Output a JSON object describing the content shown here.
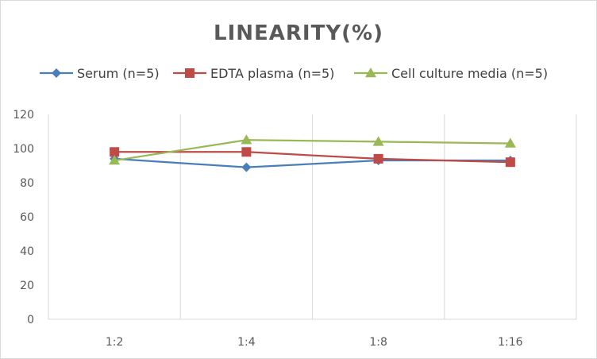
{
  "chart_data": {
    "type": "line",
    "title": "LINEARITY(%)",
    "xlabel": "",
    "ylabel": "",
    "categories": [
      "1:2",
      "1:4",
      "1:8",
      "1:16"
    ],
    "ylim": [
      0,
      120
    ],
    "yticks": [
      "0",
      "20",
      "40",
      "60",
      "80",
      "100",
      "120"
    ],
    "grid": "vertical",
    "legend_position": "top",
    "series": [
      {
        "name": "Serum (n=5)",
        "values": [
          94,
          89,
          93,
          93
        ],
        "color": "#4a7ebb",
        "marker": "diamond"
      },
      {
        "name": "EDTA plasma (n=5)",
        "values": [
          98,
          98,
          94,
          92
        ],
        "color": "#be4b48",
        "marker": "square"
      },
      {
        "name": "Cell culture media (n=5)",
        "values": [
          93,
          105,
          104,
          103
        ],
        "color": "#98b954",
        "marker": "triangle"
      }
    ]
  }
}
